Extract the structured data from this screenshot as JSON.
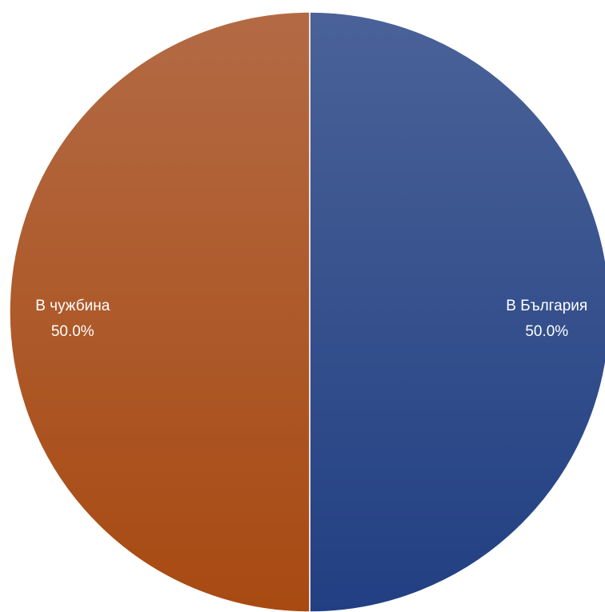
{
  "chart_data": {
    "type": "pie",
    "title": "",
    "slices": [
      {
        "label": "В България",
        "value": 50.0,
        "percent_label": "50.0%",
        "color": "#2d4c8c"
      },
      {
        "label": "В чужбина",
        "value": 50.0,
        "percent_label": "50.0%",
        "color": "#ae5a23"
      }
    ],
    "start_angle_deg": 0,
    "direction": "clockwise",
    "data_labels": true,
    "legend": "none"
  }
}
